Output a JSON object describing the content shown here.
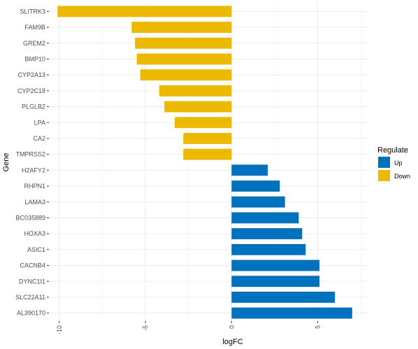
{
  "chart_data": {
    "type": "bar",
    "orientation": "horizontal",
    "xlabel": "logFC",
    "ylabel": "Gene",
    "xlim": [
      -10.6,
      7.9
    ],
    "x_ticks": [
      -10,
      -5,
      0,
      5
    ],
    "x_tick_labels": [
      "-10",
      "-5",
      "0",
      "5"
    ],
    "grid": true,
    "legend": {
      "title": "Regulate",
      "position": "right",
      "entries": [
        {
          "label": "Up",
          "color": "#0072BD"
        },
        {
          "label": "Down",
          "color": "#EDB800"
        }
      ]
    },
    "categories": [
      "SLITRK3",
      "FAM9B",
      "GREM2",
      "BMP10",
      "CYP2A13",
      "CYP2C18",
      "PLGLB2",
      "LPA",
      "CA2",
      "TMPRSS2",
      "H2AFY2",
      "RHPN1",
      "LAMA3",
      "BC035889",
      "HOXA3",
      "ASIC1",
      "CACNB4",
      "DYNC1I1",
      "SLC22A11",
      "AL390170"
    ],
    "values": [
      -10.1,
      -5.8,
      -5.6,
      -5.5,
      -5.3,
      -4.2,
      -3.9,
      -3.3,
      -2.8,
      -2.8,
      2.1,
      2.8,
      3.1,
      3.9,
      4.1,
      4.3,
      5.1,
      5.1,
      6.0,
      7.0
    ],
    "regulate": [
      "Down",
      "Down",
      "Down",
      "Down",
      "Down",
      "Down",
      "Down",
      "Down",
      "Down",
      "Down",
      "Up",
      "Up",
      "Up",
      "Up",
      "Up",
      "Up",
      "Up",
      "Up",
      "Up",
      "Up"
    ]
  }
}
